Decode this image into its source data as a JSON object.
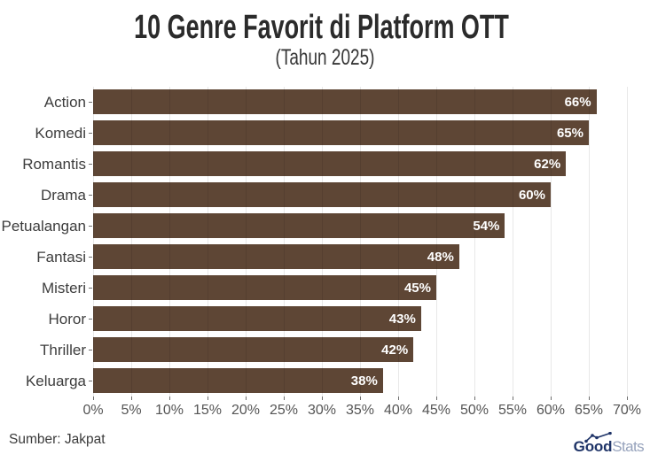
{
  "chart_data": {
    "type": "bar",
    "orientation": "horizontal",
    "title": "10 Genre Favorit di Platform OTT",
    "subtitle": "(Tahun 2025)",
    "categories": [
      "Action",
      "Komedi",
      "Romantis",
      "Drama",
      "Petualangan",
      "Fantasi",
      "Misteri",
      "Horor",
      "Thriller",
      "Keluarga"
    ],
    "values": [
      66,
      65,
      62,
      60,
      54,
      48,
      45,
      43,
      42,
      38
    ],
    "value_suffix": "%",
    "xlabel": "",
    "ylabel": "",
    "xlim": [
      0,
      70
    ],
    "xticks": [
      0,
      5,
      10,
      15,
      20,
      25,
      30,
      35,
      40,
      45,
      50,
      55,
      60,
      65,
      70
    ],
    "xtick_suffix": "%",
    "grid": true,
    "legend": false,
    "bar_color": "#5e4635"
  },
  "footer": {
    "source": "Sumber: Jakpat",
    "logo": {
      "good": "Good",
      "stats": "Stats",
      "navy": "#1f3468",
      "gray": "#97a3bc"
    }
  }
}
